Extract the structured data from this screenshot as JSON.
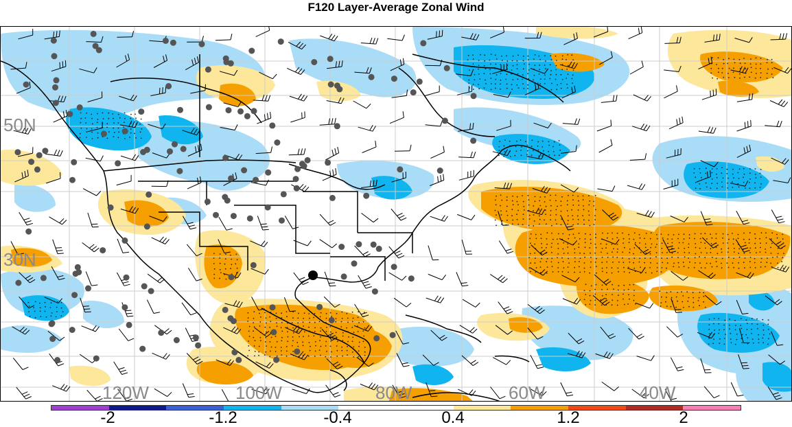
{
  "title": "F120 Layer-Average Zonal Wind",
  "lat_labels": [
    "50N",
    "30N"
  ],
  "lon_labels": [
    "120W",
    "100W",
    "80W",
    "60W",
    "40W"
  ],
  "colorbar": {
    "colors": [
      "#9e3fcf",
      "#0d1a8c",
      "#3a5fd6",
      "#10b4ee",
      "#a9dcf6",
      "#ffffff",
      "#ffffff",
      "#fce79b",
      "#f5a000",
      "#ef4a14",
      "#b42a22",
      "#f77fb4"
    ],
    "tick_labels": [
      "-2",
      "-1.2",
      "-0.4",
      "0.4",
      "1.2",
      "2"
    ]
  },
  "colors": {
    "strong_negative": "#10b4ee",
    "weak_negative": "#a9dcf6",
    "weak_positive": "#fce79b",
    "strong_positive": "#f5a000",
    "station_marker": "#555555"
  }
}
